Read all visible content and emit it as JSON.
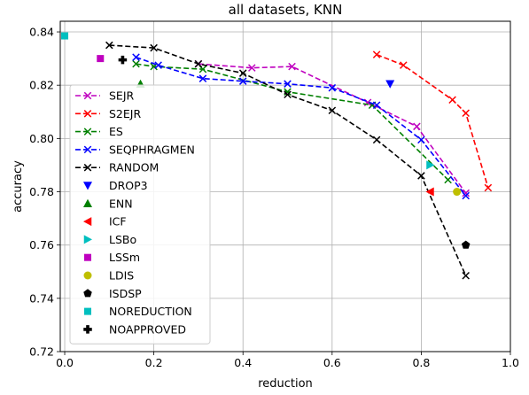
{
  "chart_data": {
    "type": "scatter",
    "title": "all datasets, KNN",
    "xlabel": "reduction",
    "ylabel": "accuracy",
    "xlim": [
      -0.01,
      1.0
    ],
    "ylim": [
      0.72,
      0.844
    ],
    "xticks": [
      0.0,
      0.2,
      0.4,
      0.6,
      0.8,
      1.0
    ],
    "xtick_labels": [
      "0.0",
      "0.2",
      "0.4",
      "0.6",
      "0.8",
      "1.0"
    ],
    "yticks": [
      0.72,
      0.74,
      0.76,
      0.78,
      0.8,
      0.82,
      0.84
    ],
    "ytick_labels": [
      "0.72",
      "0.74",
      "0.76",
      "0.78",
      "0.80",
      "0.82",
      "0.84"
    ],
    "grid": true,
    "legend_position": "left",
    "series": [
      {
        "name": "SEJR",
        "color": "#bf00bf",
        "marker": "x",
        "line": "dashed",
        "x": [
          0.3,
          0.42,
          0.51,
          0.68,
          0.79,
          0.9
        ],
        "y": [
          0.828,
          0.8265,
          0.827,
          0.8135,
          0.8045,
          0.7795
        ]
      },
      {
        "name": "S2EJR",
        "color": "#ff0000",
        "marker": "x",
        "line": "dashed",
        "x": [
          0.7,
          0.76,
          0.87,
          0.9,
          0.95
        ],
        "y": [
          0.8315,
          0.8275,
          0.8145,
          0.8095,
          0.7815
        ]
      },
      {
        "name": "ES",
        "color": "#008000",
        "marker": "x",
        "line": "dashed",
        "x": [
          0.16,
          0.2,
          0.31,
          0.5,
          0.69,
          0.86
        ],
        "y": [
          0.828,
          0.827,
          0.826,
          0.8175,
          0.8125,
          0.7845
        ]
      },
      {
        "name": "SEQPHRAGMEN",
        "color": "#0000ff",
        "marker": "x",
        "line": "dashed",
        "x": [
          0.16,
          0.21,
          0.31,
          0.4,
          0.5,
          0.6,
          0.7,
          0.8,
          0.9
        ],
        "y": [
          0.8305,
          0.8275,
          0.8225,
          0.8215,
          0.8205,
          0.819,
          0.8125,
          0.7995,
          0.7785
        ]
      },
      {
        "name": "RANDOM",
        "color": "#000000",
        "marker": "x",
        "line": "dashed",
        "x": [
          0.1,
          0.2,
          0.3,
          0.4,
          0.5,
          0.6,
          0.7,
          0.8,
          0.9
        ],
        "y": [
          0.835,
          0.834,
          0.828,
          0.8245,
          0.8165,
          0.8105,
          0.7995,
          0.786,
          0.7485
        ]
      },
      {
        "name": "DROP3",
        "color": "#0000ff",
        "marker": "triangle-down",
        "line": "none",
        "x": [
          0.73
        ],
        "y": [
          0.8205
        ]
      },
      {
        "name": "ENN",
        "color": "#008000",
        "marker": "triangle-up",
        "line": "none",
        "x": [
          0.17
        ],
        "y": [
          0.8205
        ]
      },
      {
        "name": "ICF",
        "color": "#ff0000",
        "marker": "triangle-left",
        "line": "none",
        "x": [
          0.82
        ],
        "y": [
          0.78
        ]
      },
      {
        "name": "LSBo",
        "color": "#00bfbf",
        "marker": "triangle-right",
        "line": "none",
        "x": [
          0.82
        ],
        "y": [
          0.79
        ]
      },
      {
        "name": "LSSm",
        "color": "#bf00bf",
        "marker": "square",
        "line": "none",
        "x": [
          0.08
        ],
        "y": [
          0.83
        ]
      },
      {
        "name": "LDIS",
        "color": "#bfbf00",
        "marker": "circle",
        "line": "none",
        "x": [
          0.88
        ],
        "y": [
          0.78
        ]
      },
      {
        "name": "ISDSP",
        "color": "#000000",
        "marker": "pentagon",
        "line": "none",
        "x": [
          0.9
        ],
        "y": [
          0.76
        ]
      },
      {
        "name": "NOREDUCTION",
        "color": "#00bfbf",
        "marker": "square",
        "line": "none",
        "x": [
          0.0
        ],
        "y": [
          0.8385
        ]
      },
      {
        "name": "NOAPPROVED",
        "color": "#000000",
        "marker": "plus",
        "line": "none",
        "x": [
          0.13
        ],
        "y": [
          0.8295
        ]
      }
    ]
  }
}
